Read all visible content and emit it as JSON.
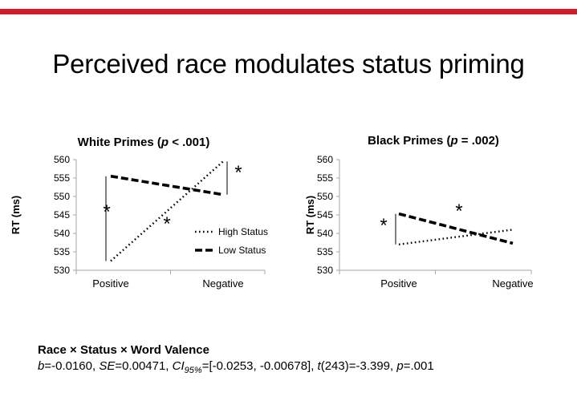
{
  "slide": {
    "title": "Perceived race modulates status priming",
    "accent_color": "#cc1f2d"
  },
  "stats": {
    "heading": "Race × Status × Word Valence",
    "b_label": "b",
    "b_value": "=-0.0160, ",
    "se_label": "SE",
    "se_value": "=0.00471, ",
    "ci_label": "CI",
    "ci_sub": "95%",
    "ci_value": "=[-0.0253, -0.00678], ",
    "t_label": "t",
    "t_value": "(243)=-3.399, ",
    "p_label": "p",
    "p_value": "=.001"
  },
  "chart_data": [
    {
      "type": "line",
      "title_prefix": "White Primes (",
      "title_p": "p",
      "title_suffix": " < .001)",
      "ylabel": "RT (ms)",
      "xlabel": "",
      "categories": [
        "Positive",
        "Negative"
      ],
      "ylim": [
        530,
        560
      ],
      "yticks": [
        "530",
        "535",
        "540",
        "545",
        "550",
        "555",
        "560"
      ],
      "series": [
        {
          "name": "High Status",
          "values": [
            532.5,
            559.5
          ],
          "style": "dotted"
        },
        {
          "name": "Low Status",
          "values": [
            555.5,
            550.5
          ],
          "style": "dashed"
        }
      ],
      "legend": "inside-bottom-right",
      "significance": [
        {
          "between": "Positive",
          "mark": "*"
        },
        {
          "between": "Negative",
          "mark": "*"
        },
        {
          "along": "High Status",
          "mark": "*"
        }
      ],
      "grid": false
    },
    {
      "type": "line",
      "title_prefix": "Black Primes (",
      "title_p": "p",
      "title_suffix": " = .002)",
      "ylabel": "RT (ms)",
      "xlabel": "",
      "categories": [
        "Positive",
        "Negative"
      ],
      "ylim": [
        530,
        560
      ],
      "yticks": [
        "530",
        "535",
        "540",
        "545",
        "550",
        "555",
        "560"
      ],
      "series": [
        {
          "name": "High Status",
          "values": [
            537.0,
            541.0
          ],
          "style": "dotted"
        },
        {
          "name": "Low Status",
          "values": [
            545.3,
            537.3
          ],
          "style": "dashed"
        }
      ],
      "legend": "none",
      "significance": [
        {
          "between": "Positive",
          "mark": "*"
        },
        {
          "along": "Low Status",
          "mark": "*"
        }
      ],
      "grid": false
    }
  ]
}
